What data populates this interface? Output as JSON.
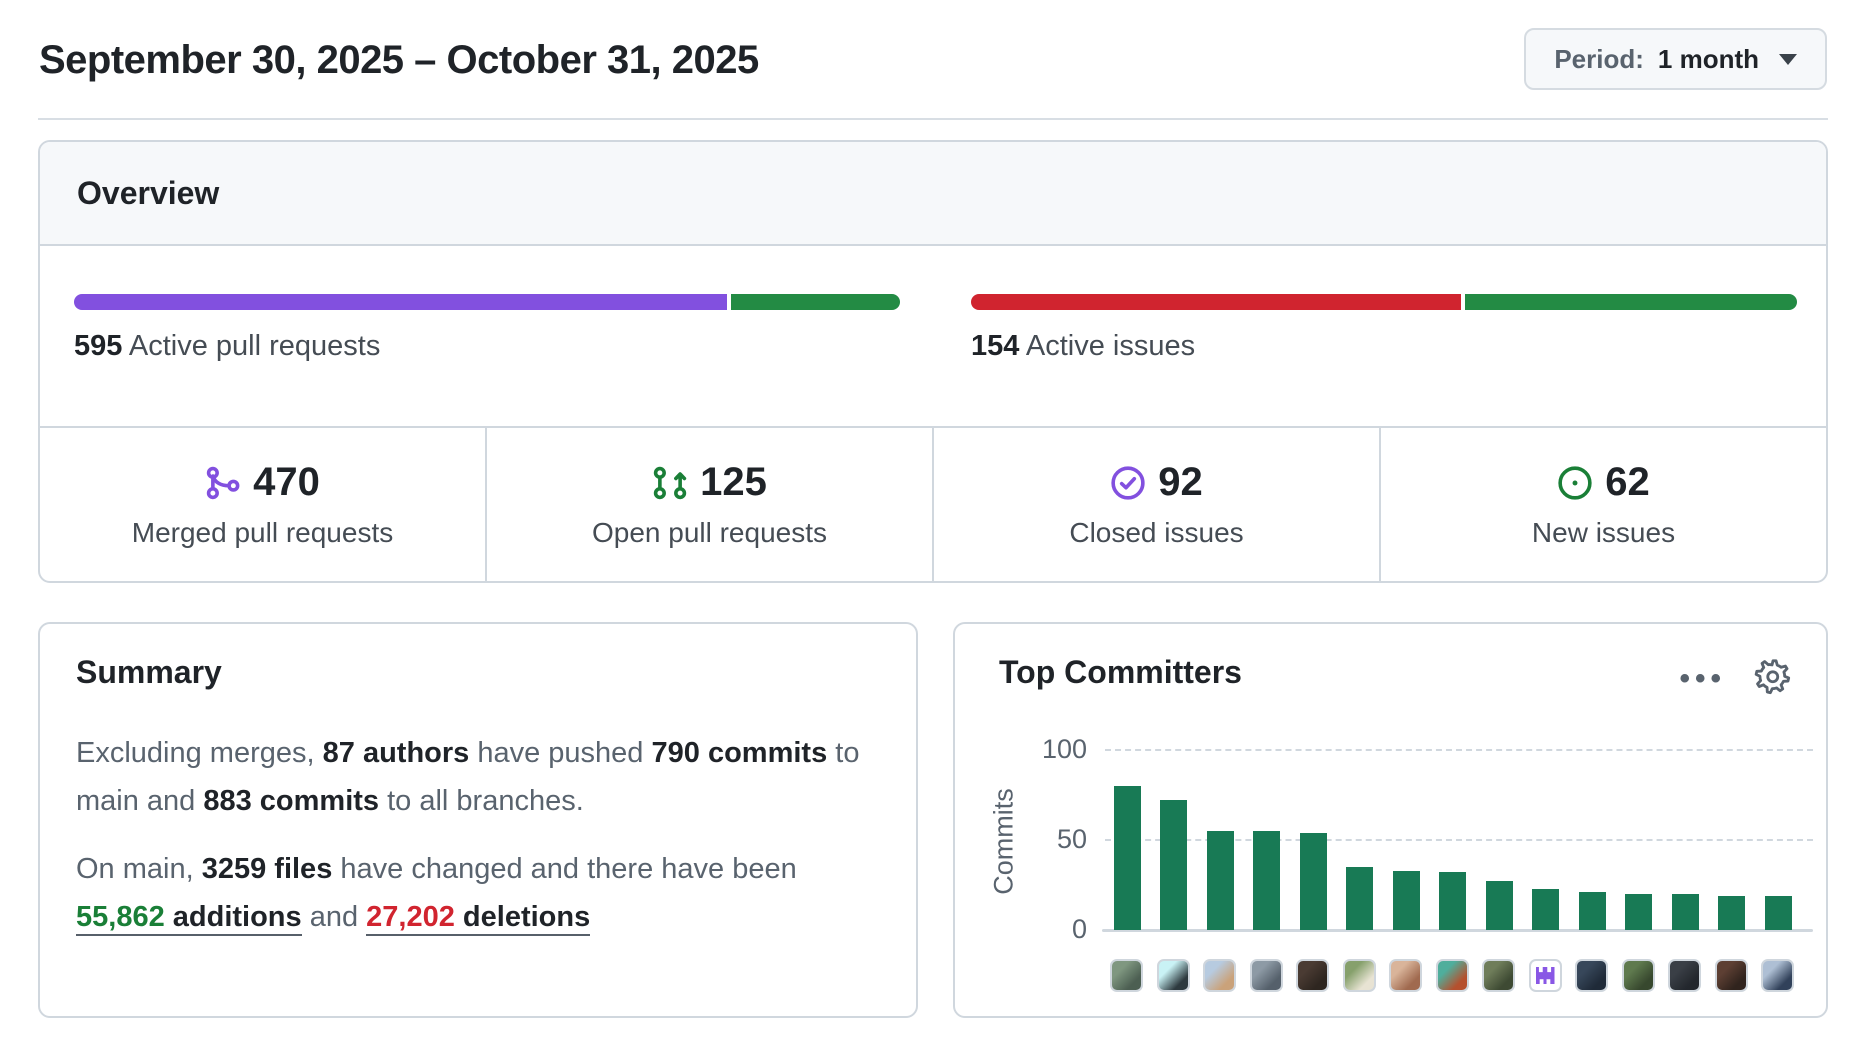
{
  "header": {
    "title": "September 30, 2025 – October 31, 2025",
    "period_label": "Period:",
    "period_value": "1 month"
  },
  "overview": {
    "title": "Overview",
    "pull_requests": {
      "count": "595",
      "label": "Active pull requests",
      "merged_fraction_pct": 79,
      "open_fraction_pct": 21,
      "merged_color": "#8250df",
      "open_color": "#238b44"
    },
    "issues": {
      "count": "154",
      "label": "Active issues",
      "closed_fraction_pct": 59.7,
      "new_fraction_pct": 40.3,
      "closed_color": "#d0242f",
      "new_color": "#238b44"
    },
    "stats": [
      {
        "value": "470",
        "label": "Merged pull requests",
        "icon": "git-merge-icon",
        "icon_color": "#8250df"
      },
      {
        "value": "125",
        "label": "Open pull requests",
        "icon": "git-pull-request-icon",
        "icon_color": "#1a7f37"
      },
      {
        "value": "92",
        "label": "Closed issues",
        "icon": "issue-closed-icon",
        "icon_color": "#8250df"
      },
      {
        "value": "62",
        "label": "New issues",
        "icon": "issue-opened-icon",
        "icon_color": "#1a7f37"
      }
    ]
  },
  "summary": {
    "title": "Summary",
    "p1": [
      {
        "t": "Excluding merges, "
      },
      {
        "t": "87 authors",
        "b": true
      },
      {
        "t": " have pushed "
      },
      {
        "t": "790 commits",
        "b": true
      },
      {
        "t": " to main and "
      },
      {
        "t": "883 commits",
        "b": true
      },
      {
        "t": " to all branches."
      }
    ],
    "p2": [
      {
        "t": "On main, "
      },
      {
        "t": "3259 files",
        "b": true
      },
      {
        "t": " have changed and there have been "
      }
    ],
    "additions_number": "55,862",
    "additions_word": " additions",
    "connector": " and ",
    "deletions_number": "27,202",
    "deletions_word": " deletions",
    "additions_color": "#1a7f37",
    "deletions_color": "#d1242f"
  },
  "top_committers": {
    "title": "Top Committers",
    "kebab_icon": "…",
    "gear_icon": "settings",
    "chart_data": {
      "type": "bar",
      "title": "Top Committers",
      "xlabel": "",
      "ylabel": "Commits",
      "ylim": [
        0,
        100
      ],
      "yticks": [
        0,
        50,
        100
      ],
      "grid": "dashed horizontal gridlines at 50 and 100",
      "legend_position": "none",
      "bar_color": "#187a55",
      "categories": [
        "committer-1",
        "committer-2",
        "committer-3",
        "committer-4",
        "committer-5",
        "committer-6",
        "committer-7",
        "committer-8",
        "committer-9",
        "committer-10",
        "committer-11",
        "committer-12",
        "committer-13",
        "committer-14",
        "committer-15"
      ],
      "values": [
        80,
        72,
        55,
        55,
        54,
        35,
        33,
        32,
        27,
        23,
        21,
        20,
        20,
        19,
        19
      ]
    },
    "avatars": [
      {
        "kind": "photo",
        "c1": "#7f9780",
        "c2": "#4c5f52"
      },
      {
        "kind": "photo",
        "c1": "#c9f2f5",
        "c2": "#2e3a3f"
      },
      {
        "kind": "photo",
        "c1": "#b7cbe0",
        "c2": "#caa27a"
      },
      {
        "kind": "photo",
        "c1": "#8d9aa5",
        "c2": "#55606b"
      },
      {
        "kind": "photo",
        "c1": "#4a3b33",
        "c2": "#2e2620"
      },
      {
        "kind": "photo",
        "c1": "#86a06c",
        "c2": "#e8e3d3"
      },
      {
        "kind": "photo",
        "c1": "#d9b49a",
        "c2": "#a06a4f"
      },
      {
        "kind": "photo",
        "c1": "#4fae9c",
        "c2": "#b5502e"
      },
      {
        "kind": "photo",
        "c1": "#6f7d5a",
        "c2": "#3e4a33"
      },
      {
        "kind": "robot",
        "c1": "#ffffff",
        "c2": "#8957e5"
      },
      {
        "kind": "photo",
        "c1": "#37475a",
        "c2": "#1f2a38"
      },
      {
        "kind": "photo",
        "c1": "#5f7a4e",
        "c2": "#37482e"
      },
      {
        "kind": "photo",
        "c1": "#3a3f46",
        "c2": "#23272d"
      },
      {
        "kind": "photo",
        "c1": "#5d3f33",
        "c2": "#30231d"
      },
      {
        "kind": "photo",
        "c1": "#aebfd4",
        "c2": "#31415a"
      }
    ]
  },
  "colors": {
    "card_border": "#d0d7de",
    "card_header_bg": "#f6f8fa",
    "text_dark": "#1f2328",
    "text_muted": "#59636e"
  }
}
